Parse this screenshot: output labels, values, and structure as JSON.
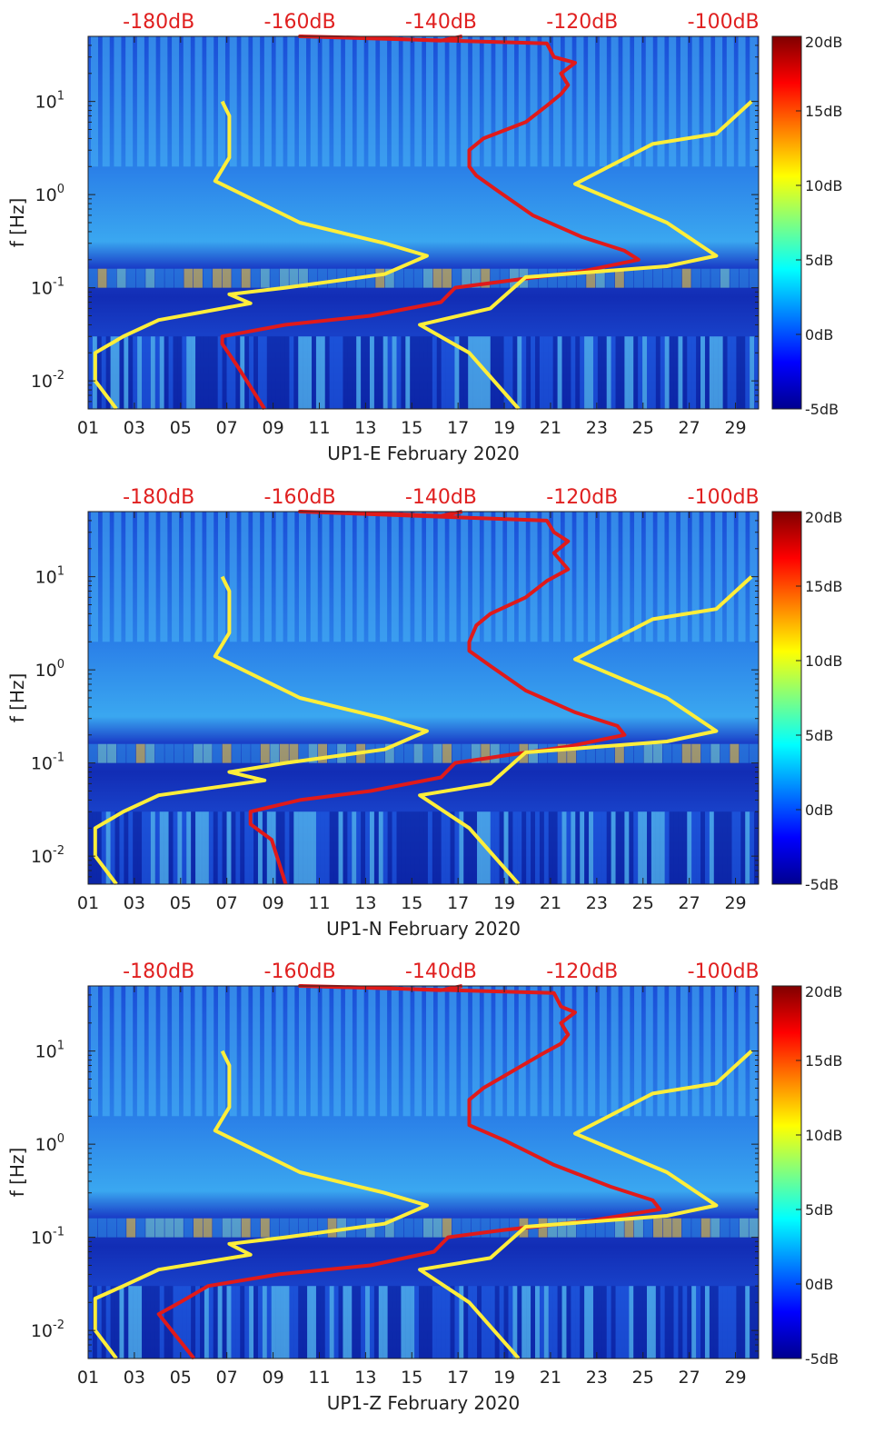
{
  "figure": {
    "ylabel": "f [Hz]",
    "top_axis_ticks": [
      "-180dB",
      "-160dB",
      "-140dB",
      "-120dB",
      "-100dB"
    ],
    "x_ticks": [
      "01",
      "03",
      "05",
      "07",
      "09",
      "11",
      "13",
      "15",
      "17",
      "19",
      "21",
      "23",
      "25",
      "27",
      "29"
    ],
    "colorbar_ticks": [
      "20dB",
      "15dB",
      "10dB",
      "5dB",
      "0dB",
      "-5dB"
    ],
    "colors": {
      "overlay_red": "#e01a1a",
      "overlay_yellow": "#ffee3a",
      "top_axis_text": "#e02020",
      "colormap": "jet"
    }
  },
  "chart_data": [
    {
      "type": "heatmap",
      "title": "",
      "xlabel": "UP1-E February 2020",
      "ylabel": "f [Hz]",
      "x_unit": "day of February 2020",
      "xlim": [
        1,
        30
      ],
      "ylim_hz": [
        0.005,
        50
      ],
      "yscale": "log",
      "y_ticks_hz": [
        0.01,
        0.1,
        1,
        10
      ],
      "y_tick_labels": [
        "10-2",
        "10-1",
        "100",
        "101"
      ],
      "top_axis": {
        "label_values_db": [
          -180,
          -160,
          -140,
          -120,
          -100
        ],
        "range_db": [
          -190,
          -95
        ]
      },
      "colorbar": {
        "range_db": [
          -5,
          20
        ],
        "ticks_db": [
          20,
          15,
          10,
          5,
          0,
          -5
        ],
        "colormap": "jet"
      },
      "series": [
        {
          "color": "red",
          "axis": "top dB scale vs frequency",
          "points": [
            [
              -137,
              50
            ],
            [
              -140,
              45
            ],
            [
              -150,
              48
            ],
            [
              -160,
              50
            ],
            [
              -125,
              42
            ],
            [
              -124,
              30
            ],
            [
              -121,
              26
            ],
            [
              -123,
              20
            ],
            [
              -122,
              15
            ],
            [
              -123,
              12
            ],
            [
              -125,
              9
            ],
            [
              -128,
              6
            ],
            [
              -134,
              4
            ],
            [
              -136,
              3
            ],
            [
              -136,
              2
            ],
            [
              -135,
              1.6
            ],
            [
              -132,
              1.1
            ],
            [
              -127,
              0.6
            ],
            [
              -120,
              0.35
            ],
            [
              -114,
              0.25
            ],
            [
              -112,
              0.2
            ],
            [
              -120,
              0.15
            ],
            [
              -130,
              0.12
            ],
            [
              -138,
              0.1
            ],
            [
              -140,
              0.07
            ],
            [
              -150,
              0.05
            ],
            [
              -162,
              0.04
            ],
            [
              -171,
              0.03
            ],
            [
              -171,
              0.025
            ],
            [
              -169,
              0.015
            ],
            [
              -165,
              0.005
            ]
          ]
        },
        {
          "color": "yellow",
          "axis": "top dB scale vs frequency",
          "points": [
            [
              -171,
              10
            ],
            [
              -170,
              7
            ],
            [
              -170,
              2.5
            ],
            [
              -172,
              1.4
            ],
            [
              -160,
              0.5
            ],
            [
              -148,
              0.3
            ],
            [
              -142,
              0.22
            ],
            [
              -148,
              0.14
            ],
            [
              -162,
              0.1
            ],
            [
              -170,
              0.085
            ],
            [
              -167,
              0.068
            ],
            [
              -180,
              0.045
            ],
            [
              -185,
              0.03
            ],
            [
              -189,
              0.02
            ],
            [
              -189,
              0.01
            ],
            [
              -186,
              0.005
            ]
          ]
        },
        {
          "color": "yellow",
          "axis": "top dB scale vs frequency",
          "points": [
            [
              -96,
              10
            ],
            [
              -101,
              4.5
            ],
            [
              -110,
              3.5
            ],
            [
              -121,
              1.3
            ],
            [
              -108,
              0.5
            ],
            [
              -101,
              0.22
            ],
            [
              -108,
              0.17
            ],
            [
              -128,
              0.13
            ],
            [
              -133,
              0.06
            ],
            [
              -143,
              0.04
            ],
            [
              -136,
              0.02
            ],
            [
              -129,
              0.005
            ]
          ]
        }
      ]
    },
    {
      "type": "heatmap",
      "title": "",
      "xlabel": "UP1-N February 2020",
      "ylabel": "f [Hz]",
      "x_unit": "day of February 2020",
      "xlim": [
        1,
        30
      ],
      "ylim_hz": [
        0.005,
        50
      ],
      "yscale": "log",
      "y_ticks_hz": [
        0.01,
        0.1,
        1,
        10
      ],
      "y_tick_labels": [
        "10-2",
        "10-1",
        "100",
        "101"
      ],
      "top_axis": {
        "label_values_db": [
          -180,
          -160,
          -140,
          -120,
          -100
        ],
        "range_db": [
          -190,
          -95
        ]
      },
      "colorbar": {
        "range_db": [
          -5,
          20
        ],
        "ticks_db": [
          20,
          15,
          10,
          5,
          0,
          -5
        ],
        "colormap": "jet"
      },
      "series": [
        {
          "color": "red",
          "axis": "top dB scale vs frequency",
          "points": [
            [
              -137,
              50
            ],
            [
              -140,
              45
            ],
            [
              -150,
              48
            ],
            [
              -160,
              50
            ],
            [
              -125,
              40
            ],
            [
              -124,
              30
            ],
            [
              -122,
              24
            ],
            [
              -124,
              18
            ],
            [
              -122,
              12
            ],
            [
              -125,
              9
            ],
            [
              -128,
              6
            ],
            [
              -133,
              4
            ],
            [
              -135,
              3
            ],
            [
              -136,
              2
            ],
            [
              -136,
              1.6
            ],
            [
              -133,
              1.1
            ],
            [
              -128,
              0.6
            ],
            [
              -121,
              0.35
            ],
            [
              -115,
              0.25
            ],
            [
              -114,
              0.2
            ],
            [
              -122,
              0.15
            ],
            [
              -131,
              0.12
            ],
            [
              -138,
              0.1
            ],
            [
              -140,
              0.07
            ],
            [
              -150,
              0.05
            ],
            [
              -160,
              0.04
            ],
            [
              -167,
              0.03
            ],
            [
              -167,
              0.022
            ],
            [
              -164,
              0.015
            ],
            [
              -162,
              0.005
            ]
          ]
        },
        {
          "color": "yellow",
          "axis": "top dB scale vs frequency",
          "points": [
            [
              -171,
              10
            ],
            [
              -170,
              7
            ],
            [
              -170,
              2.5
            ],
            [
              -172,
              1.4
            ],
            [
              -160,
              0.5
            ],
            [
              -148,
              0.3
            ],
            [
              -142,
              0.22
            ],
            [
              -148,
              0.14
            ],
            [
              -162,
              0.1
            ],
            [
              -170,
              0.08
            ],
            [
              -165,
              0.065
            ],
            [
              -180,
              0.045
            ],
            [
              -185,
              0.03
            ],
            [
              -189,
              0.02
            ],
            [
              -189,
              0.01
            ],
            [
              -186,
              0.005
            ]
          ]
        },
        {
          "color": "yellow",
          "axis": "top dB scale vs frequency",
          "points": [
            [
              -96,
              10
            ],
            [
              -101,
              4.5
            ],
            [
              -110,
              3.5
            ],
            [
              -121,
              1.3
            ],
            [
              -108,
              0.5
            ],
            [
              -101,
              0.22
            ],
            [
              -108,
              0.17
            ],
            [
              -128,
              0.13
            ],
            [
              -133,
              0.06
            ],
            [
              -143,
              0.045
            ],
            [
              -136,
              0.02
            ],
            [
              -129,
              0.005
            ]
          ]
        }
      ]
    },
    {
      "type": "heatmap",
      "title": "",
      "xlabel": "UP1-Z February 2020",
      "ylabel": "f [Hz]",
      "x_unit": "day of February 2020",
      "xlim": [
        1,
        30
      ],
      "ylim_hz": [
        0.005,
        50
      ],
      "yscale": "log",
      "y_ticks_hz": [
        0.01,
        0.1,
        1,
        10
      ],
      "y_tick_labels": [
        "10-2",
        "10-1",
        "100",
        "101"
      ],
      "top_axis": {
        "label_values_db": [
          -180,
          -160,
          -140,
          -120,
          -100
        ],
        "range_db": [
          -190,
          -95
        ]
      },
      "colorbar": {
        "range_db": [
          -5,
          20
        ],
        "ticks_db": [
          20,
          15,
          10,
          5,
          0,
          -5
        ],
        "colormap": "jet"
      },
      "series": [
        {
          "color": "red",
          "axis": "top dB scale vs frequency",
          "points": [
            [
              -137,
              50
            ],
            [
              -140,
              45
            ],
            [
              -150,
              48
            ],
            [
              -160,
              50
            ],
            [
              -124,
              42
            ],
            [
              -123,
              30
            ],
            [
              -121,
              26
            ],
            [
              -123,
              20
            ],
            [
              -122,
              15
            ],
            [
              -123,
              12
            ],
            [
              -126,
              9
            ],
            [
              -130,
              6
            ],
            [
              -134,
              4
            ],
            [
              -136,
              3
            ],
            [
              -136,
              2
            ],
            [
              -136,
              1.6
            ],
            [
              -131,
              1.1
            ],
            [
              -124,
              0.6
            ],
            [
              -116,
              0.35
            ],
            [
              -110,
              0.25
            ],
            [
              -109,
              0.2
            ],
            [
              -119,
              0.15
            ],
            [
              -131,
              0.12
            ],
            [
              -139,
              0.1
            ],
            [
              -141,
              0.07
            ],
            [
              -150,
              0.05
            ],
            [
              -163,
              0.04
            ],
            [
              -173,
              0.03
            ],
            [
              -177,
              0.02
            ],
            [
              -180,
              0.015
            ],
            [
              -175,
              0.005
            ]
          ]
        },
        {
          "color": "yellow",
          "axis": "top dB scale vs frequency",
          "points": [
            [
              -171,
              10
            ],
            [
              -170,
              7
            ],
            [
              -170,
              2.5
            ],
            [
              -172,
              1.4
            ],
            [
              -160,
              0.5
            ],
            [
              -148,
              0.3
            ],
            [
              -142,
              0.22
            ],
            [
              -148,
              0.14
            ],
            [
              -162,
              0.1
            ],
            [
              -170,
              0.085
            ],
            [
              -167,
              0.065
            ],
            [
              -180,
              0.045
            ],
            [
              -185,
              0.03
            ],
            [
              -189,
              0.022
            ],
            [
              -189,
              0.01
            ],
            [
              -186,
              0.005
            ]
          ]
        },
        {
          "color": "yellow",
          "axis": "top dB scale vs frequency",
          "points": [
            [
              -96,
              10
            ],
            [
              -101,
              4.5
            ],
            [
              -110,
              3.5
            ],
            [
              -121,
              1.3
            ],
            [
              -108,
              0.5
            ],
            [
              -101,
              0.22
            ],
            [
              -108,
              0.17
            ],
            [
              -128,
              0.13
            ],
            [
              -133,
              0.06
            ],
            [
              -143,
              0.045
            ],
            [
              -136,
              0.02
            ],
            [
              -129,
              0.005
            ]
          ]
        }
      ]
    }
  ]
}
